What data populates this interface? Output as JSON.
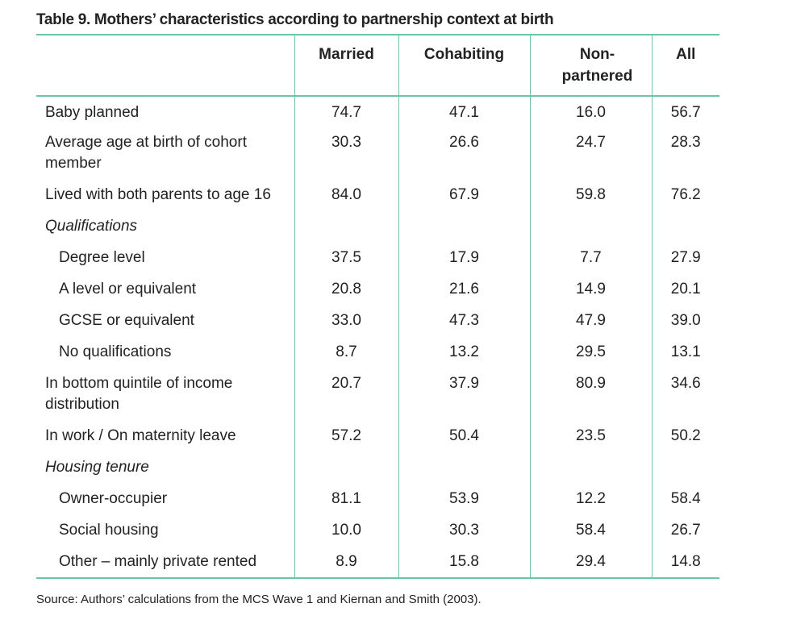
{
  "title": "Table 9. Mothers’ characteristics according to partnership context at birth",
  "columns": [
    "Married",
    "Cohabiting",
    "Non-\npartnered",
    "All"
  ],
  "rows": [
    {
      "label": "Baby planned",
      "values": [
        "74.7",
        "47.1",
        "16.0",
        "56.7"
      ]
    },
    {
      "label": "Average age at birth of cohort member",
      "values": [
        "30.3",
        "26.6",
        "24.7",
        "28.3"
      ]
    },
    {
      "label": "Lived with both parents to age 16",
      "values": [
        "84.0",
        "67.9",
        "59.8",
        "76.2"
      ]
    },
    {
      "label": "Qualifications",
      "values": [
        "",
        "",
        "",
        ""
      ]
    },
    {
      "label": "Degree level",
      "values": [
        "37.5",
        "17.9",
        "7.7",
        "27.9"
      ]
    },
    {
      "label": "A level or equivalent",
      "values": [
        "20.8",
        "21.6",
        "14.9",
        "20.1"
      ]
    },
    {
      "label": "GCSE or equivalent",
      "values": [
        "33.0",
        "47.3",
        "47.9",
        "39.0"
      ]
    },
    {
      "label": "No qualifications",
      "values": [
        "8.7",
        "13.2",
        "29.5",
        "13.1"
      ]
    },
    {
      "label": "In bottom quintile of income distribution",
      "values": [
        "20.7",
        "37.9",
        "80.9",
        "34.6"
      ]
    },
    {
      "label": "In work / On maternity leave",
      "values": [
        "57.2",
        "50.4",
        "23.5",
        "50.2"
      ]
    },
    {
      "label": "Housing tenure",
      "values": [
        "",
        "",
        "",
        ""
      ]
    },
    {
      "label": "Owner-occupier",
      "values": [
        "81.1",
        "53.9",
        "12.2",
        "58.4"
      ]
    },
    {
      "label": "Social housing",
      "values": [
        "10.0",
        "30.3",
        "58.4",
        "26.7"
      ]
    },
    {
      "label": "Other – mainly private rented",
      "values": [
        "8.9",
        "15.8",
        "29.4",
        "14.8"
      ]
    }
  ],
  "source": "Source: Authors’ calculations from the MCS Wave 1 and Kiernan and Smith (2003).",
  "colors": {
    "rule": "#6dc3a5",
    "text": "#222222"
  }
}
